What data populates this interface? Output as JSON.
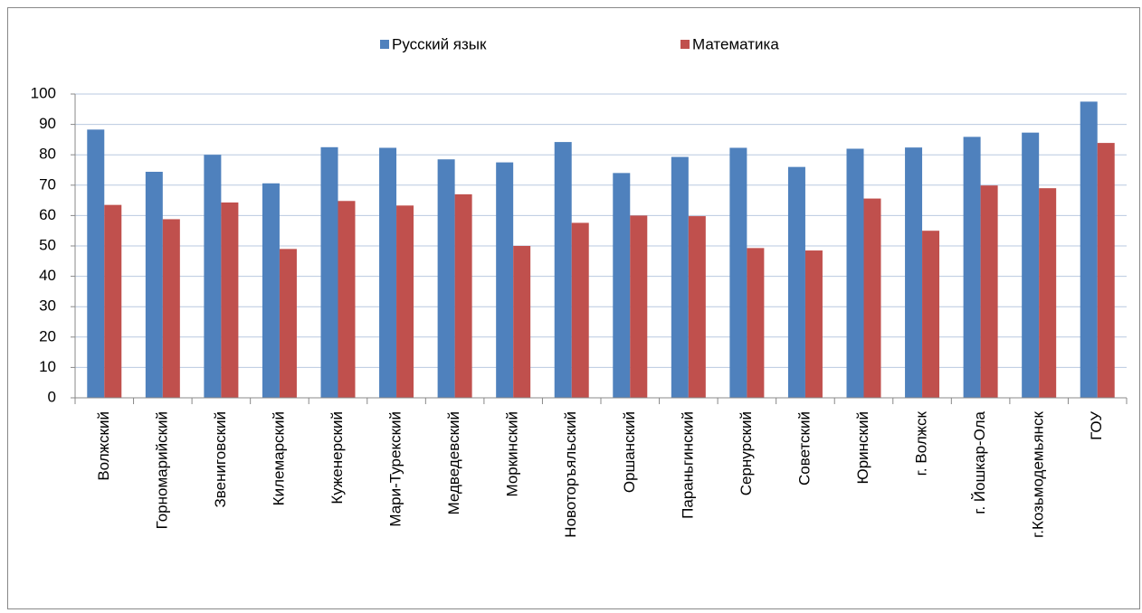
{
  "chart_data": {
    "type": "bar",
    "categories": [
      "Волжский",
      "Горномарийский",
      "Звениговский",
      "Килемарский",
      "Куженерский",
      "Мари-Турекский",
      "Медведевский",
      "Моркинский",
      "Новоторъяльский",
      "Оршанский",
      "Параньгинский",
      "Сернурский",
      "Советский",
      "Юринский",
      "г. Волжск",
      "г. Йошкар-Ола",
      "г.Козьмодемьянск",
      "ГОУ"
    ],
    "series": [
      {
        "name": "Русский язык",
        "color": "#4f81bd",
        "values": [
          88.3,
          74.4,
          80,
          70.6,
          82.5,
          82.3,
          78.5,
          77.5,
          84.2,
          74,
          79.3,
          82.3,
          76,
          82,
          82.4,
          85.9,
          87.3,
          97.5
        ]
      },
      {
        "name": "Математика",
        "color": "#c0504d",
        "values": [
          63.5,
          58.8,
          64.3,
          49,
          64.8,
          63.3,
          67,
          50,
          57.6,
          60,
          59.8,
          49.3,
          48.5,
          65.6,
          55,
          69.9,
          69,
          83.9
        ]
      }
    ],
    "ylim": [
      0,
      100
    ],
    "yticks": [
      0,
      10,
      20,
      30,
      40,
      50,
      60,
      70,
      80,
      90,
      100
    ],
    "grid": true,
    "legend": "top"
  }
}
